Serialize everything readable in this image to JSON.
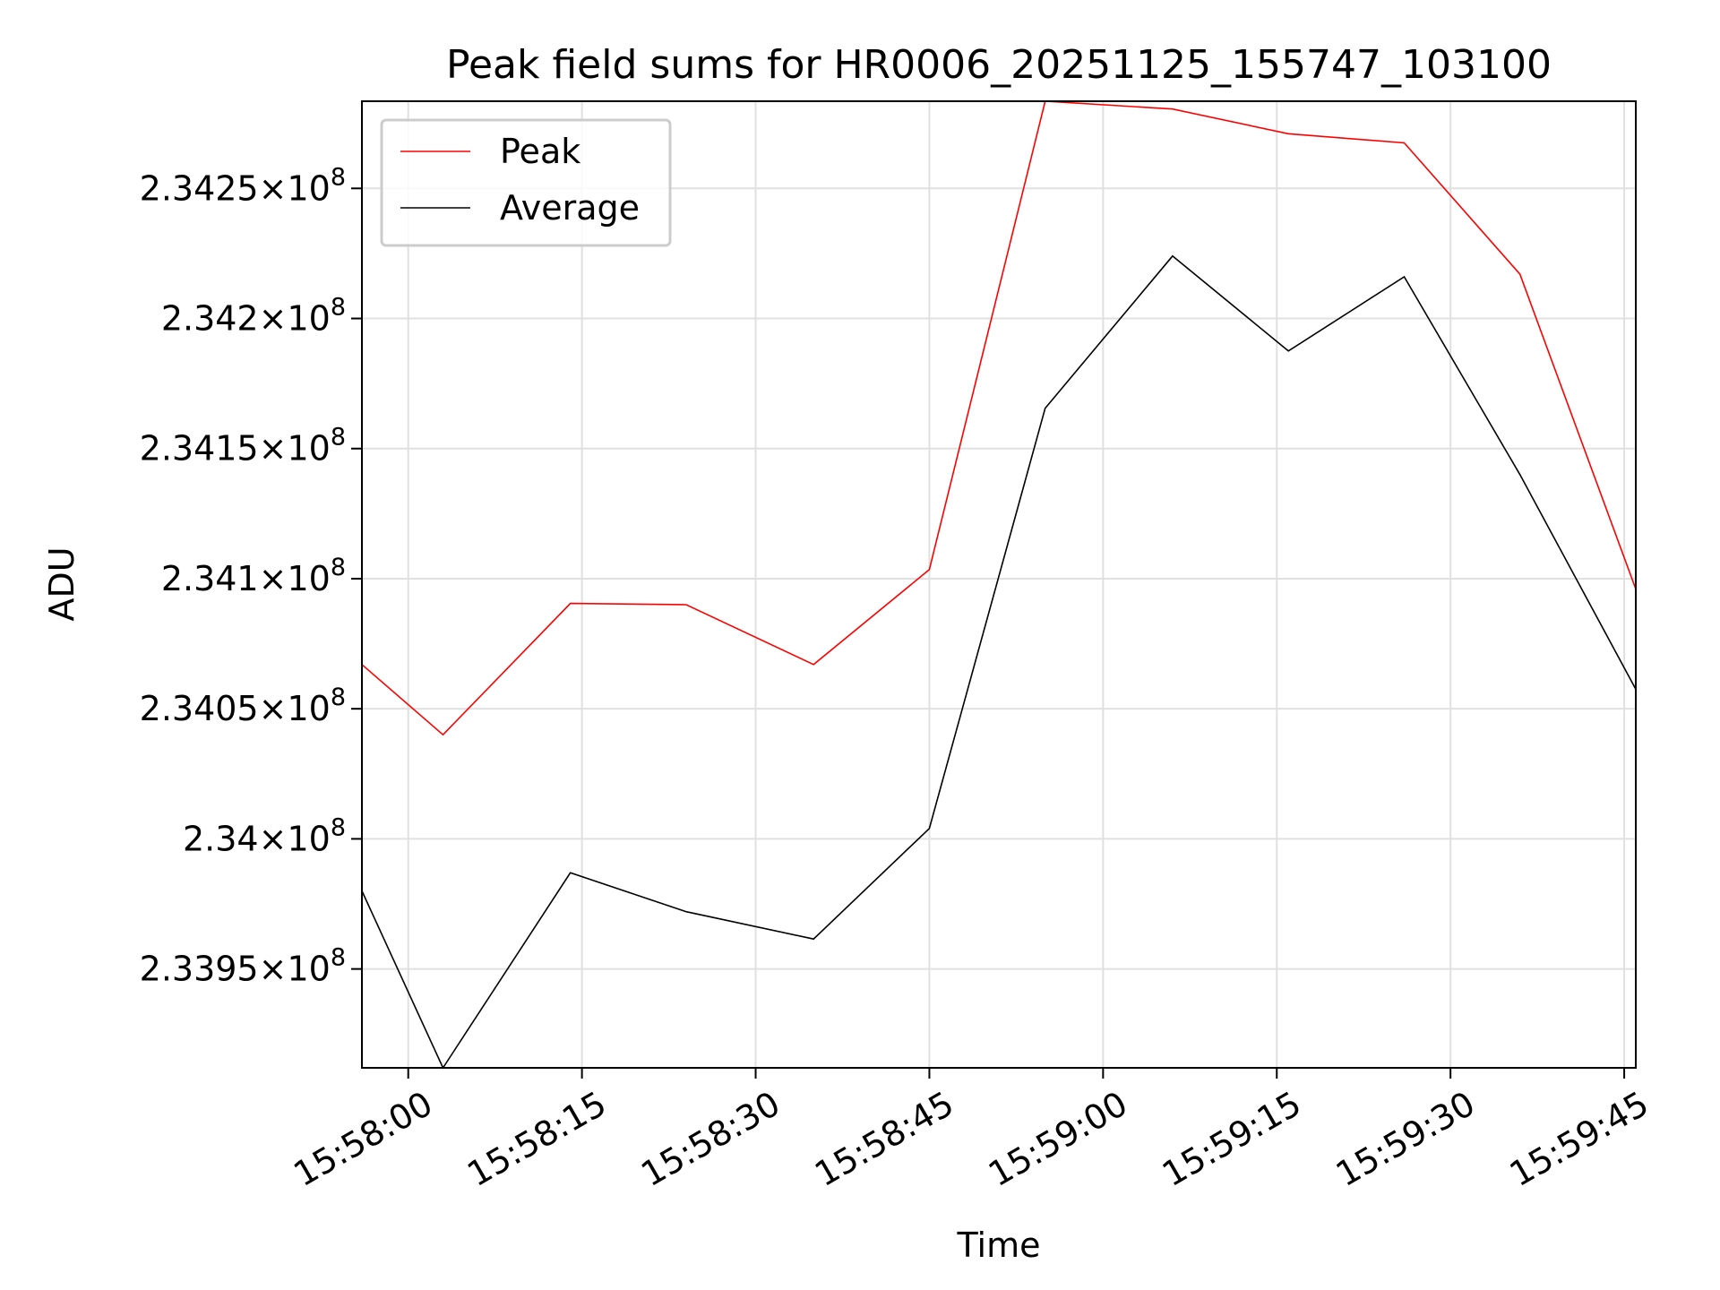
{
  "chart_data": {
    "type": "line",
    "title": "Peak field sums for HR0006_20251125_155747_103100",
    "xlabel": "Time",
    "ylabel": "ADU",
    "x": [
      "15:57:56",
      "15:58:03",
      "15:58:14",
      "15:58:24",
      "15:58:35",
      "15:58:45",
      "15:58:55",
      "15:59:06",
      "15:59:16",
      "15:59:26",
      "15:59:36",
      "15:59:46"
    ],
    "series": [
      {
        "name": "Peak",
        "color": "#ff0000",
        "values": [
          234067000,
          234040000,
          234090500,
          234090000,
          234067000,
          234103500,
          234283500,
          234280500,
          234271000,
          234267500,
          234217000,
          234096000
        ]
      },
      {
        "name": "Average",
        "color": "#000000",
        "values": [
          233980000,
          233912000,
          233987000,
          233972000,
          233961500,
          234004000,
          234165500,
          234224000,
          234187500,
          234216000,
          234140000,
          234057500
        ]
      }
    ],
    "xlim": [
      "15:57:56",
      "15:59:46"
    ],
    "ylim": [
      233912000,
      234283500
    ],
    "yticks": [
      {
        "value": 233950000,
        "mantissa": "2.3395",
        "exponent": "8"
      },
      {
        "value": 234000000,
        "mantissa": "2.34",
        "exponent": "8"
      },
      {
        "value": 234050000,
        "mantissa": "2.3405",
        "exponent": "8"
      },
      {
        "value": 234100000,
        "mantissa": "2.341",
        "exponent": "8"
      },
      {
        "value": 234150000,
        "mantissa": "2.3415",
        "exponent": "8"
      },
      {
        "value": 234200000,
        "mantissa": "2.342",
        "exponent": "8"
      },
      {
        "value": 234250000,
        "mantissa": "2.3425",
        "exponent": "8"
      }
    ],
    "xticks": [
      "15:58:00",
      "15:58:15",
      "15:58:30",
      "15:58:45",
      "15:59:00",
      "15:59:15",
      "15:59:30",
      "15:59:45"
    ],
    "grid": true,
    "legend": "top-left"
  }
}
